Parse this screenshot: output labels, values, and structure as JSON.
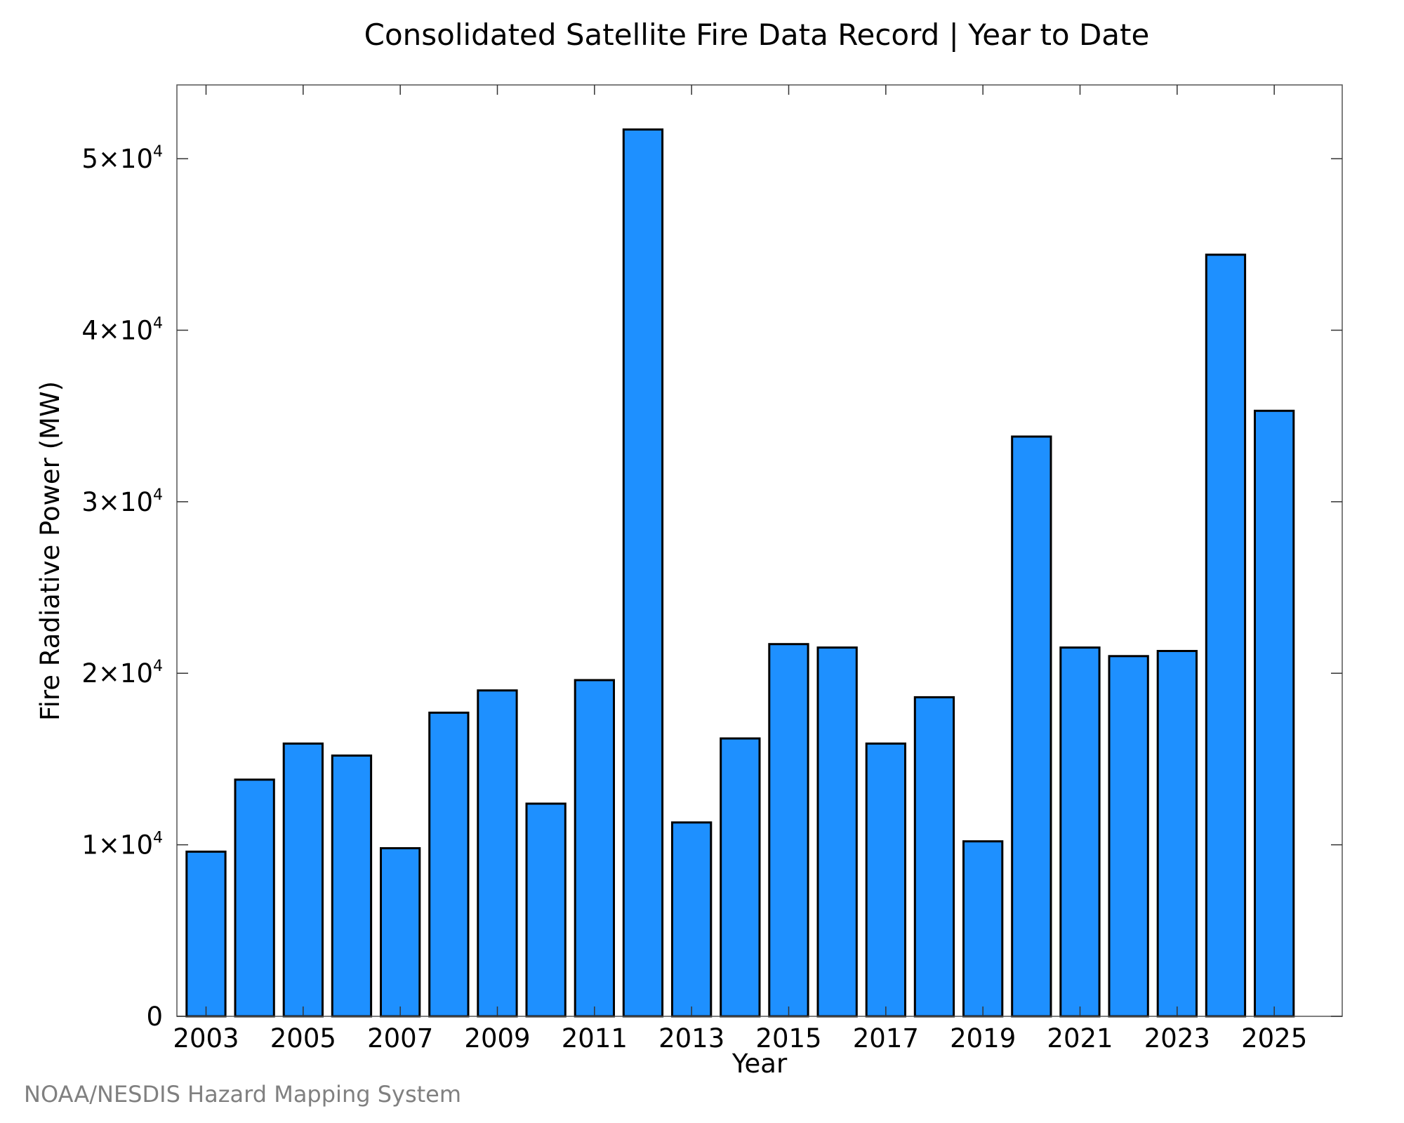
{
  "chart_data": {
    "type": "bar",
    "title": "Consolidated Satellite Fire Data Record | Year to Date",
    "xlabel": "Year",
    "ylabel": "Fire Radiative Power (MW)",
    "categories": [
      2003,
      2004,
      2005,
      2006,
      2007,
      2008,
      2009,
      2010,
      2011,
      2012,
      2013,
      2014,
      2015,
      2016,
      2017,
      2018,
      2019,
      2020,
      2021,
      2022,
      2023,
      2024,
      2025
    ],
    "values": [
      9600,
      13800,
      15900,
      15200,
      9800,
      17700,
      19000,
      12400,
      19600,
      51700,
      11300,
      16200,
      21700,
      21500,
      15900,
      18600,
      10200,
      33800,
      21500,
      21000,
      21300,
      44400,
      35300
    ],
    "xticks": [
      "2003",
      "2005",
      "2007",
      "2009",
      "2011",
      "2013",
      "2015",
      "2017",
      "2019",
      "2021",
      "2023",
      "2025"
    ],
    "yticks": [
      {
        "value": 0,
        "label": "0",
        "exp": ""
      },
      {
        "value": 10000,
        "label": "1×10",
        "exp": "4"
      },
      {
        "value": 20000,
        "label": "2×10",
        "exp": "4"
      },
      {
        "value": 30000,
        "label": "3×10",
        "exp": "4"
      },
      {
        "value": 40000,
        "label": "4×10",
        "exp": "4"
      },
      {
        "value": 50000,
        "label": "5×10",
        "exp": "4"
      }
    ],
    "xlim": [
      2002.4,
      2026.4
    ],
    "ylim": [
      0,
      54300
    ],
    "grid": false,
    "legend": "none",
    "bar_color": "#1e90ff",
    "bar_edge_color": "#000000"
  },
  "credit": "NOAA/NESDIS Hazard Mapping System"
}
